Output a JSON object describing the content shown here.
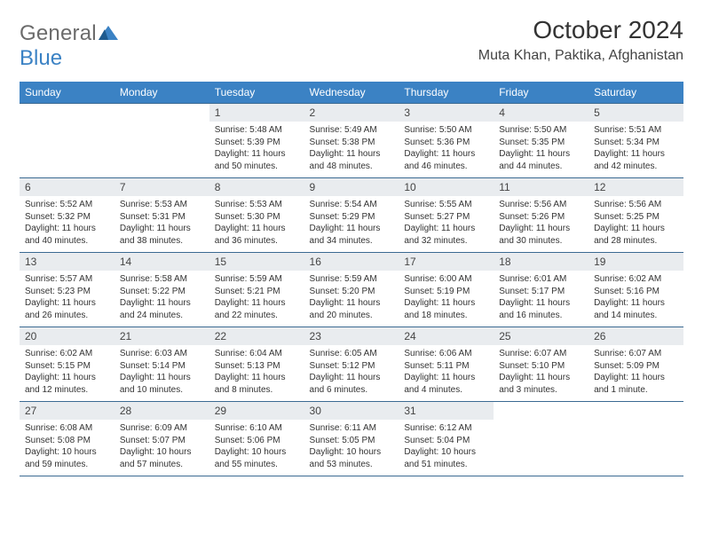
{
  "logo": {
    "general": "General",
    "blue": "Blue"
  },
  "title": "October 2024",
  "location": "Muta Khan, Paktika, Afghanistan",
  "dayHeaders": [
    "Sunday",
    "Monday",
    "Tuesday",
    "Wednesday",
    "Thursday",
    "Friday",
    "Saturday"
  ],
  "colors": {
    "headerBg": "#3b82c4",
    "headerText": "#ffffff",
    "dayNumBg": "#e9ecef",
    "rowBorder": "#3b6a92",
    "logoGray": "#6b6b6b",
    "logoBlue": "#3b82c4"
  },
  "weeks": [
    [
      {
        "empty": true
      },
      {
        "empty": true
      },
      {
        "day": "1",
        "sunrise": "Sunrise: 5:48 AM",
        "sunset": "Sunset: 5:39 PM",
        "daylight": "Daylight: 11 hours and 50 minutes."
      },
      {
        "day": "2",
        "sunrise": "Sunrise: 5:49 AM",
        "sunset": "Sunset: 5:38 PM",
        "daylight": "Daylight: 11 hours and 48 minutes."
      },
      {
        "day": "3",
        "sunrise": "Sunrise: 5:50 AM",
        "sunset": "Sunset: 5:36 PM",
        "daylight": "Daylight: 11 hours and 46 minutes."
      },
      {
        "day": "4",
        "sunrise": "Sunrise: 5:50 AM",
        "sunset": "Sunset: 5:35 PM",
        "daylight": "Daylight: 11 hours and 44 minutes."
      },
      {
        "day": "5",
        "sunrise": "Sunrise: 5:51 AM",
        "sunset": "Sunset: 5:34 PM",
        "daylight": "Daylight: 11 hours and 42 minutes."
      }
    ],
    [
      {
        "day": "6",
        "sunrise": "Sunrise: 5:52 AM",
        "sunset": "Sunset: 5:32 PM",
        "daylight": "Daylight: 11 hours and 40 minutes."
      },
      {
        "day": "7",
        "sunrise": "Sunrise: 5:53 AM",
        "sunset": "Sunset: 5:31 PM",
        "daylight": "Daylight: 11 hours and 38 minutes."
      },
      {
        "day": "8",
        "sunrise": "Sunrise: 5:53 AM",
        "sunset": "Sunset: 5:30 PM",
        "daylight": "Daylight: 11 hours and 36 minutes."
      },
      {
        "day": "9",
        "sunrise": "Sunrise: 5:54 AM",
        "sunset": "Sunset: 5:29 PM",
        "daylight": "Daylight: 11 hours and 34 minutes."
      },
      {
        "day": "10",
        "sunrise": "Sunrise: 5:55 AM",
        "sunset": "Sunset: 5:27 PM",
        "daylight": "Daylight: 11 hours and 32 minutes."
      },
      {
        "day": "11",
        "sunrise": "Sunrise: 5:56 AM",
        "sunset": "Sunset: 5:26 PM",
        "daylight": "Daylight: 11 hours and 30 minutes."
      },
      {
        "day": "12",
        "sunrise": "Sunrise: 5:56 AM",
        "sunset": "Sunset: 5:25 PM",
        "daylight": "Daylight: 11 hours and 28 minutes."
      }
    ],
    [
      {
        "day": "13",
        "sunrise": "Sunrise: 5:57 AM",
        "sunset": "Sunset: 5:23 PM",
        "daylight": "Daylight: 11 hours and 26 minutes."
      },
      {
        "day": "14",
        "sunrise": "Sunrise: 5:58 AM",
        "sunset": "Sunset: 5:22 PM",
        "daylight": "Daylight: 11 hours and 24 minutes."
      },
      {
        "day": "15",
        "sunrise": "Sunrise: 5:59 AM",
        "sunset": "Sunset: 5:21 PM",
        "daylight": "Daylight: 11 hours and 22 minutes."
      },
      {
        "day": "16",
        "sunrise": "Sunrise: 5:59 AM",
        "sunset": "Sunset: 5:20 PM",
        "daylight": "Daylight: 11 hours and 20 minutes."
      },
      {
        "day": "17",
        "sunrise": "Sunrise: 6:00 AM",
        "sunset": "Sunset: 5:19 PM",
        "daylight": "Daylight: 11 hours and 18 minutes."
      },
      {
        "day": "18",
        "sunrise": "Sunrise: 6:01 AM",
        "sunset": "Sunset: 5:17 PM",
        "daylight": "Daylight: 11 hours and 16 minutes."
      },
      {
        "day": "19",
        "sunrise": "Sunrise: 6:02 AM",
        "sunset": "Sunset: 5:16 PM",
        "daylight": "Daylight: 11 hours and 14 minutes."
      }
    ],
    [
      {
        "day": "20",
        "sunrise": "Sunrise: 6:02 AM",
        "sunset": "Sunset: 5:15 PM",
        "daylight": "Daylight: 11 hours and 12 minutes."
      },
      {
        "day": "21",
        "sunrise": "Sunrise: 6:03 AM",
        "sunset": "Sunset: 5:14 PM",
        "daylight": "Daylight: 11 hours and 10 minutes."
      },
      {
        "day": "22",
        "sunrise": "Sunrise: 6:04 AM",
        "sunset": "Sunset: 5:13 PM",
        "daylight": "Daylight: 11 hours and 8 minutes."
      },
      {
        "day": "23",
        "sunrise": "Sunrise: 6:05 AM",
        "sunset": "Sunset: 5:12 PM",
        "daylight": "Daylight: 11 hours and 6 minutes."
      },
      {
        "day": "24",
        "sunrise": "Sunrise: 6:06 AM",
        "sunset": "Sunset: 5:11 PM",
        "daylight": "Daylight: 11 hours and 4 minutes."
      },
      {
        "day": "25",
        "sunrise": "Sunrise: 6:07 AM",
        "sunset": "Sunset: 5:10 PM",
        "daylight": "Daylight: 11 hours and 3 minutes."
      },
      {
        "day": "26",
        "sunrise": "Sunrise: 6:07 AM",
        "sunset": "Sunset: 5:09 PM",
        "daylight": "Daylight: 11 hours and 1 minute."
      }
    ],
    [
      {
        "day": "27",
        "sunrise": "Sunrise: 6:08 AM",
        "sunset": "Sunset: 5:08 PM",
        "daylight": "Daylight: 10 hours and 59 minutes."
      },
      {
        "day": "28",
        "sunrise": "Sunrise: 6:09 AM",
        "sunset": "Sunset: 5:07 PM",
        "daylight": "Daylight: 10 hours and 57 minutes."
      },
      {
        "day": "29",
        "sunrise": "Sunrise: 6:10 AM",
        "sunset": "Sunset: 5:06 PM",
        "daylight": "Daylight: 10 hours and 55 minutes."
      },
      {
        "day": "30",
        "sunrise": "Sunrise: 6:11 AM",
        "sunset": "Sunset: 5:05 PM",
        "daylight": "Daylight: 10 hours and 53 minutes."
      },
      {
        "day": "31",
        "sunrise": "Sunrise: 6:12 AM",
        "sunset": "Sunset: 5:04 PM",
        "daylight": "Daylight: 10 hours and 51 minutes."
      },
      {
        "empty": true
      },
      {
        "empty": true
      }
    ]
  ]
}
